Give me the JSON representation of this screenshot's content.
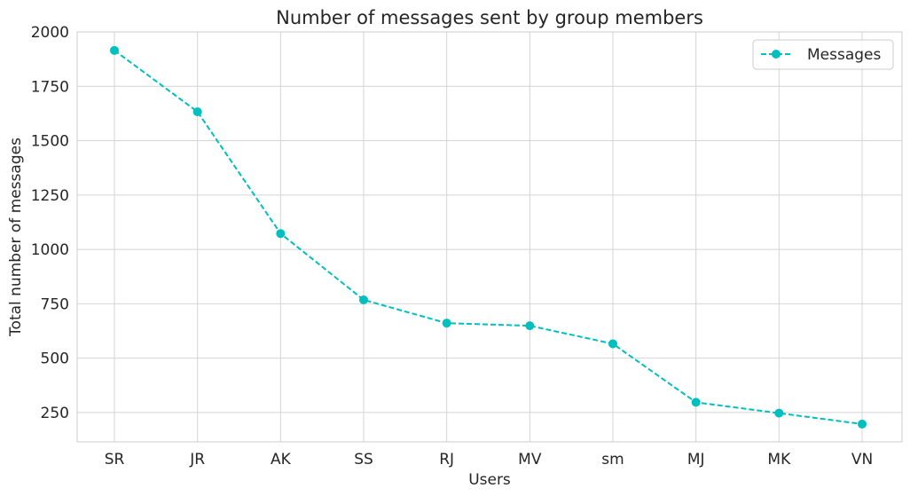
{
  "chart_data": {
    "type": "line",
    "title": "Number of messages sent by group members",
    "xlabel": "Users",
    "ylabel": "Total number of messages",
    "categories": [
      "SR",
      "JR",
      "AK",
      "SS",
      "RJ",
      "MV",
      "sm",
      "MJ",
      "MK",
      "VN"
    ],
    "series": [
      {
        "name": "Messages",
        "values": [
          1915,
          1633,
          1073,
          768,
          661,
          649,
          566,
          297,
          247,
          197
        ],
        "color": "#00bfbf",
        "line_style": "dashed",
        "marker": "circle"
      }
    ],
    "ylim": [
      115,
      2000
    ],
    "yticks": [
      250,
      500,
      750,
      1000,
      1250,
      1500,
      1750,
      2000
    ],
    "grid": true,
    "legend_position": "top-right"
  },
  "colors": {
    "grid": "#d4d4d4",
    "spine": "#cccccc",
    "text": "#262626",
    "background": "#ffffff"
  }
}
